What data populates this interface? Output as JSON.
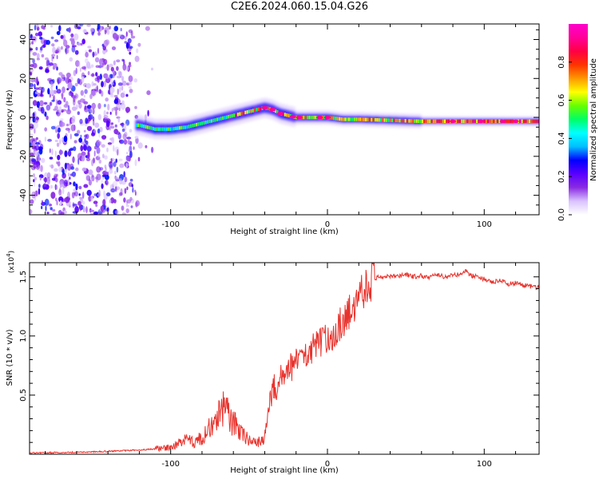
{
  "title": "C2E6.2024.060.15.04.G26",
  "chart_data": [
    {
      "type": "heatmap",
      "xlabel": "Height of straight line (km)",
      "ylabel": "Frequency (Hz)",
      "xlim": [
        -190,
        135
      ],
      "ylim": [
        -50,
        48
      ],
      "x_ticks": [
        "-100",
        "0",
        "100"
      ],
      "y_ticks": [
        "-40",
        "-20",
        "0",
        "20",
        "40"
      ],
      "colorbar": {
        "label": "Normalized spectral amplitude",
        "range": [
          0,
          1
        ],
        "ticks": [
          "0.0",
          "0.2",
          "0.4",
          "0.6",
          "0.8"
        ],
        "colors": [
          "#ffffff",
          "#d9c2ff",
          "#8a2be2",
          "#5a00ff",
          "#0000ff",
          "#00bfff",
          "#00ffff",
          "#00ff66",
          "#66ff00",
          "#ffff00",
          "#ff9900",
          "#ff3300",
          "#ff0044",
          "#ff0099",
          "#ff00cc"
        ]
      },
      "ridge": {
        "x": [
          -120,
          -110,
          -100,
          -90,
          -80,
          -70,
          -60,
          -50,
          -45,
          -40,
          -35,
          -30,
          -25,
          -20,
          -10,
          0,
          10,
          20,
          40,
          60,
          80,
          100,
          120,
          135
        ],
        "y": [
          -4,
          -6,
          -6,
          -5,
          -3,
          -1,
          1,
          3,
          4,
          5,
          4,
          2,
          1,
          0,
          0,
          0,
          -1,
          -1,
          -1.5,
          -2,
          -2,
          -2,
          -2,
          -2
        ]
      }
    },
    {
      "type": "line",
      "xlabel": "Height of straight line (km)",
      "ylabel": "SNR (10 * v/v)",
      "y_multiplier_label": "(x10",
      "y_multiplier_exp": "4",
      "xlim": [
        -190,
        135
      ],
      "ylim": [
        0,
        1.62
      ],
      "x_ticks": [
        "-100",
        "0",
        "100"
      ],
      "y_ticks": [
        "0.5",
        "1.0",
        "1.5"
      ],
      "color": "#e8322c",
      "series": [
        {
          "x": [
            -190,
            -170,
            -150,
            -130,
            -120,
            -110,
            -100,
            -95,
            -90,
            -85,
            -80,
            -75,
            -70,
            -66,
            -64,
            -62,
            -58,
            -55,
            -50,
            -45,
            -42,
            -40,
            -38,
            -36,
            -34,
            -32,
            -30,
            -28,
            -26,
            -24,
            -22,
            -20,
            -18,
            -16,
            -14,
            -12,
            -10,
            -8,
            -6,
            -4,
            -2,
            0,
            2,
            4,
            6,
            8,
            10,
            12,
            14,
            16,
            18,
            20,
            22,
            24,
            26,
            28,
            30,
            32,
            35,
            40,
            45,
            50,
            55,
            60,
            65,
            70,
            75,
            80,
            85,
            88,
            90,
            95,
            100,
            105,
            110,
            115,
            120,
            125,
            130,
            135
          ],
          "y": [
            0.01,
            0.015,
            0.02,
            0.03,
            0.035,
            0.045,
            0.06,
            0.09,
            0.12,
            0.1,
            0.14,
            0.22,
            0.3,
            0.42,
            0.35,
            0.28,
            0.24,
            0.18,
            0.12,
            0.1,
            0.11,
            0.14,
            0.35,
            0.48,
            0.58,
            0.55,
            0.66,
            0.7,
            0.65,
            0.75,
            0.72,
            0.8,
            0.82,
            0.78,
            0.86,
            0.9,
            0.88,
            0.92,
            0.95,
            0.93,
            0.98,
            0.96,
            1.02,
            1.0,
            1.05,
            1.1,
            1.08,
            1.15,
            1.2,
            1.26,
            1.3,
            1.35,
            1.38,
            1.42,
            1.45,
            1.47,
            1.48,
            1.5,
            1.5,
            1.51,
            1.5,
            1.52,
            1.5,
            1.51,
            1.49,
            1.52,
            1.5,
            1.51,
            1.53,
            1.56,
            1.52,
            1.5,
            1.48,
            1.45,
            1.47,
            1.44,
            1.45,
            1.43,
            1.42,
            1.41
          ]
        }
      ]
    }
  ]
}
